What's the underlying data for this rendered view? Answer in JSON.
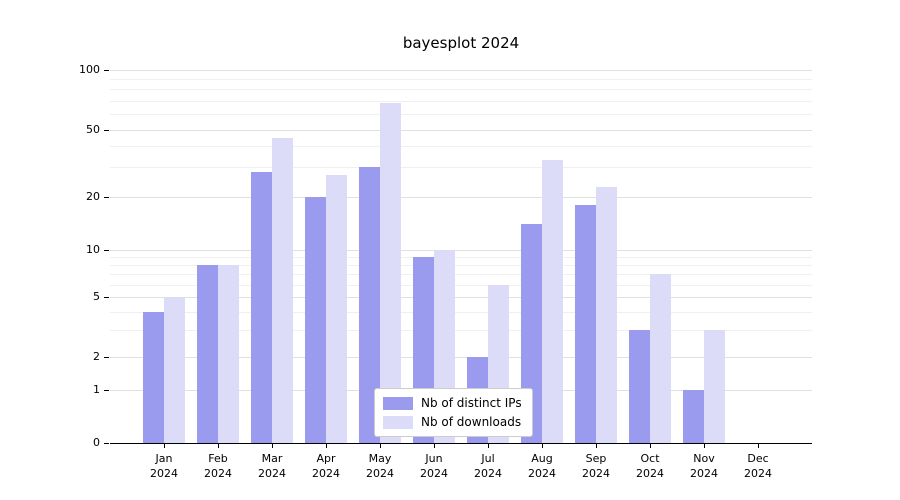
{
  "chart_data": {
    "type": "bar",
    "title": "bayesplot 2024",
    "categories": [
      "Jan",
      "Feb",
      "Mar",
      "Apr",
      "May",
      "Jun",
      "Jul",
      "Aug",
      "Sep",
      "Oct",
      "Nov",
      "Dec"
    ],
    "year_label": "2024",
    "series": [
      {
        "name": "Nb of distinct IPs",
        "color": "#9a9aef",
        "values": [
          4,
          8,
          28,
          20,
          30,
          9,
          2,
          14,
          18,
          3,
          1,
          0
        ]
      },
      {
        "name": "Nb of downloads",
        "color": "#dcdcf9",
        "values": [
          5,
          8,
          45,
          27,
          68,
          10,
          6,
          33,
          23,
          7,
          3,
          0
        ]
      }
    ],
    "y_scale": "log",
    "y_ticks": [
      0,
      1,
      2,
      5,
      10,
      20,
      50,
      100
    ],
    "y_minor_ticks": [
      3,
      4,
      6,
      7,
      8,
      9,
      30,
      40,
      60,
      70,
      80,
      90
    ],
    "ylim": [
      0,
      110
    ],
    "grid": "horizontal",
    "legend_position": "lower center"
  }
}
